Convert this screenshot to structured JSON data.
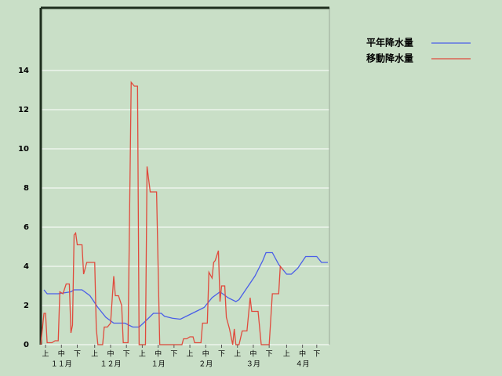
{
  "chart_data": {
    "type": "line",
    "xlim": [
      0,
      182
    ],
    "ylim": [
      0,
      17.2
    ],
    "yticks": [
      0,
      2,
      4,
      6,
      8,
      10,
      12,
      14
    ],
    "xticks": [
      {
        "value": 3,
        "label": "上"
      },
      {
        "value": 13,
        "label": "中"
      },
      {
        "value": 23,
        "label": "下"
      },
      {
        "value": 34,
        "label": "上"
      },
      {
        "value": 44,
        "label": "中"
      },
      {
        "value": 54,
        "label": "下"
      },
      {
        "value": 64,
        "label": "上"
      },
      {
        "value": 74,
        "label": "中"
      },
      {
        "value": 84,
        "label": "下"
      },
      {
        "value": 94,
        "label": "上"
      },
      {
        "value": 104,
        "label": "中"
      },
      {
        "value": 114,
        "label": "下"
      },
      {
        "value": 124,
        "label": "上"
      },
      {
        "value": 134,
        "label": "中"
      },
      {
        "value": 144,
        "label": "下"
      },
      {
        "value": 155,
        "label": "上"
      },
      {
        "value": 165,
        "label": "中"
      },
      {
        "value": 174,
        "label": "下"
      }
    ],
    "month_labels": [
      {
        "value": 13,
        "label": "１１月"
      },
      {
        "value": 44,
        "label": "１２月"
      },
      {
        "value": 74,
        "label": "１月"
      },
      {
        "value": 104,
        "label": "２月"
      },
      {
        "value": 134,
        "label": "３月"
      },
      {
        "value": 165,
        "label": "４月"
      }
    ],
    "grid": true,
    "series": [
      {
        "name": "平年降水量",
        "color": "#4a5ee8",
        "x": [
          2,
          4,
          11,
          19,
          21,
          26,
          31,
          36,
          41,
          46,
          53,
          58,
          62,
          66,
          71,
          76,
          78,
          83,
          88,
          93,
          98,
          103,
          108,
          113,
          118,
          123,
          125,
          130,
          135,
          140,
          142,
          146,
          150,
          155,
          158,
          162,
          167,
          174,
          177,
          181
        ],
        "values": [
          2.8,
          2.6,
          2.6,
          2.7,
          2.8,
          2.8,
          2.5,
          1.9,
          1.4,
          1.1,
          1.1,
          0.9,
          0.9,
          1.2,
          1.6,
          1.6,
          1.45,
          1.35,
          1.3,
          1.5,
          1.7,
          1.9,
          2.4,
          2.7,
          2.4,
          2.2,
          2.3,
          2.9,
          3.5,
          4.3,
          4.7,
          4.7,
          4.1,
          3.6,
          3.6,
          3.9,
          4.5,
          4.5,
          4.2,
          4.2
        ]
      },
      {
        "name": "移動降水量",
        "color": "#e04a3c",
        "x": [
          0,
          2,
          3,
          4,
          7,
          9,
          11,
          12,
          14,
          16,
          18,
          19,
          20,
          21,
          22,
          23,
          26,
          27,
          29,
          34,
          35,
          36,
          39,
          40,
          42,
          44,
          46,
          47,
          49,
          51,
          52,
          55,
          57,
          59,
          61,
          62,
          66,
          67,
          69,
          73,
          75,
          89,
          90,
          92,
          94,
          96,
          97,
          101,
          102,
          105,
          106,
          108,
          109,
          110,
          112,
          113,
          114,
          116,
          117,
          119,
          121,
          122,
          123,
          125,
          127,
          130,
          132,
          133,
          137,
          139,
          144,
          146,
          150,
          151,
          153
        ],
        "values": [
          0,
          1.6,
          1.6,
          0.1,
          0.1,
          0.2,
          0.2,
          2.7,
          2.6,
          3.1,
          3.1,
          0.6,
          1,
          5.6,
          5.7,
          5.1,
          5.1,
          3.6,
          4.2,
          4.2,
          0.8,
          0,
          0,
          0.9,
          0.9,
          1.1,
          3.5,
          2.5,
          2.5,
          2,
          0.1,
          0.1,
          13.4,
          13.2,
          13.2,
          0,
          0,
          9.1,
          7.8,
          7.8,
          0,
          0,
          0.3,
          0.3,
          0.4,
          0.4,
          0.1,
          0.1,
          1.1,
          1.1,
          3.7,
          3.4,
          4.2,
          4.3,
          4.8,
          2.2,
          3,
          3,
          1.4,
          0.8,
          0,
          0.8,
          0,
          0,
          0.7,
          0.7,
          2.4,
          1.7,
          1.7,
          0,
          0,
          2.6,
          2.6,
          4,
          3.8
        ]
      }
    ]
  }
}
